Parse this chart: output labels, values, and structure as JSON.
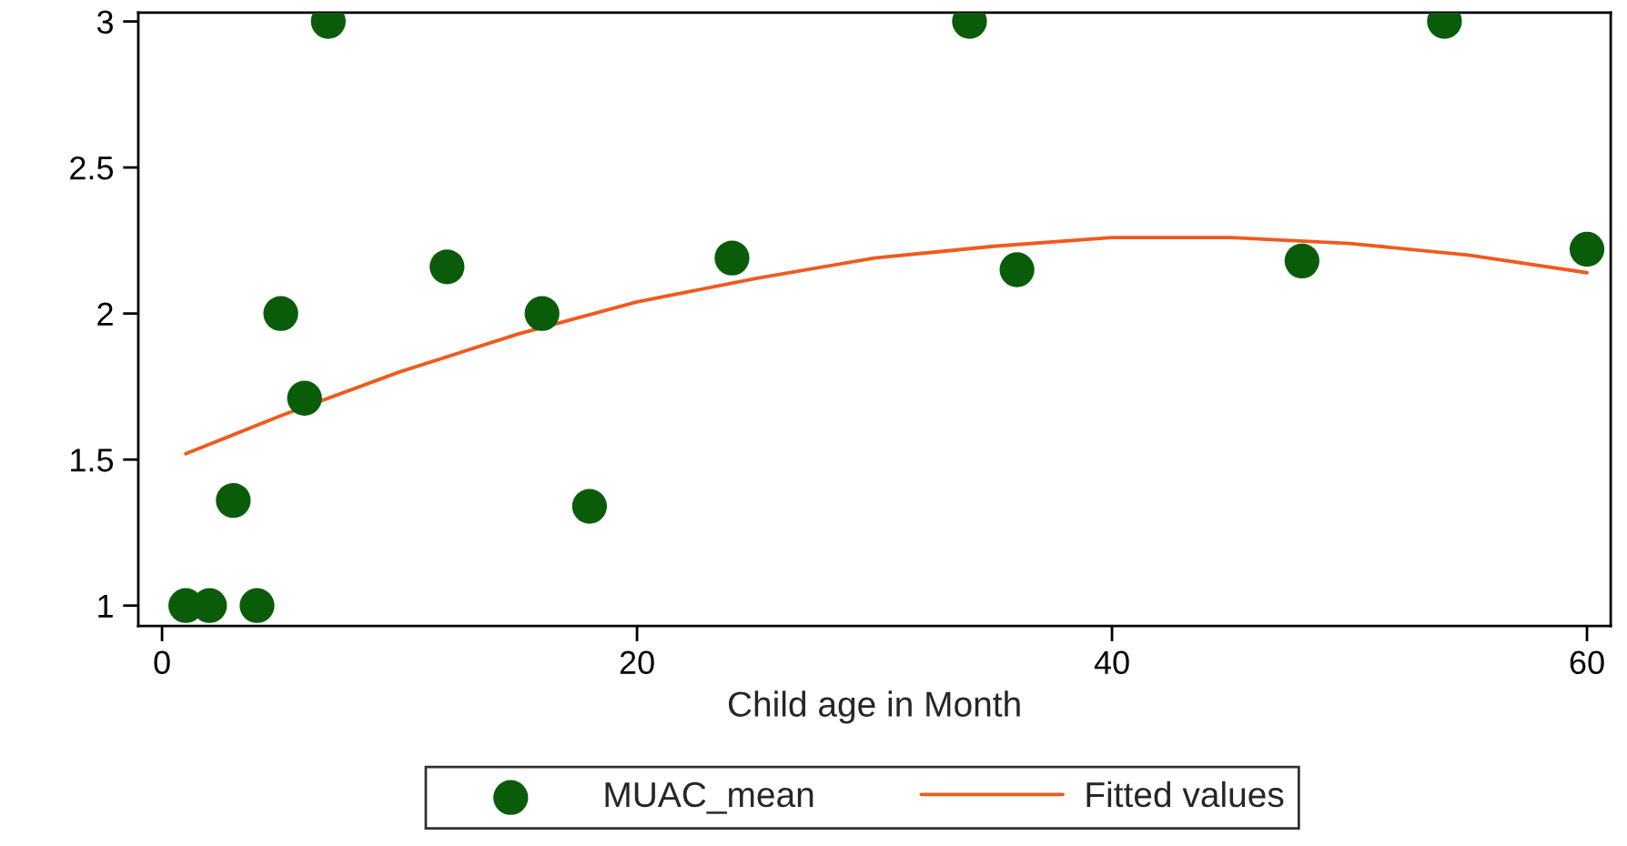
{
  "chart_data": {
    "type": "scatter",
    "xlabel": "Child age in Month",
    "series": [
      {
        "name": "MUAC_mean",
        "color": "#0a5c0a",
        "marker": "circle",
        "x": [
          1,
          2,
          3,
          4,
          5,
          6,
          7,
          12,
          16,
          18,
          24,
          34,
          36,
          48,
          54,
          60
        ],
        "values": [
          1,
          1,
          1.36,
          1,
          2,
          1.71,
          3,
          2.16,
          2,
          1.34,
          2.19,
          3,
          2.15,
          2.18,
          3,
          2.22
        ]
      },
      {
        "name": "Fitted values",
        "type": "line",
        "color": "#f05a1e",
        "marker": "none",
        "line_style": "solid",
        "x": [
          1,
          5,
          10,
          15,
          20,
          25,
          30,
          35,
          40,
          45,
          50,
          55,
          60
        ],
        "values": [
          1.52,
          1.65,
          1.8,
          1.93,
          2.04,
          2.12,
          2.19,
          2.23,
          2.26,
          2.26,
          2.24,
          2.2,
          2.14
        ]
      }
    ],
    "xlim": [
      -1,
      61
    ],
    "xticks": [
      0,
      20,
      40,
      60
    ],
    "ylim": [
      0.93,
      3.03
    ],
    "yticks": [
      1,
      1.5,
      2,
      2.5,
      3
    ],
    "grid": false,
    "legend": "bottom"
  }
}
